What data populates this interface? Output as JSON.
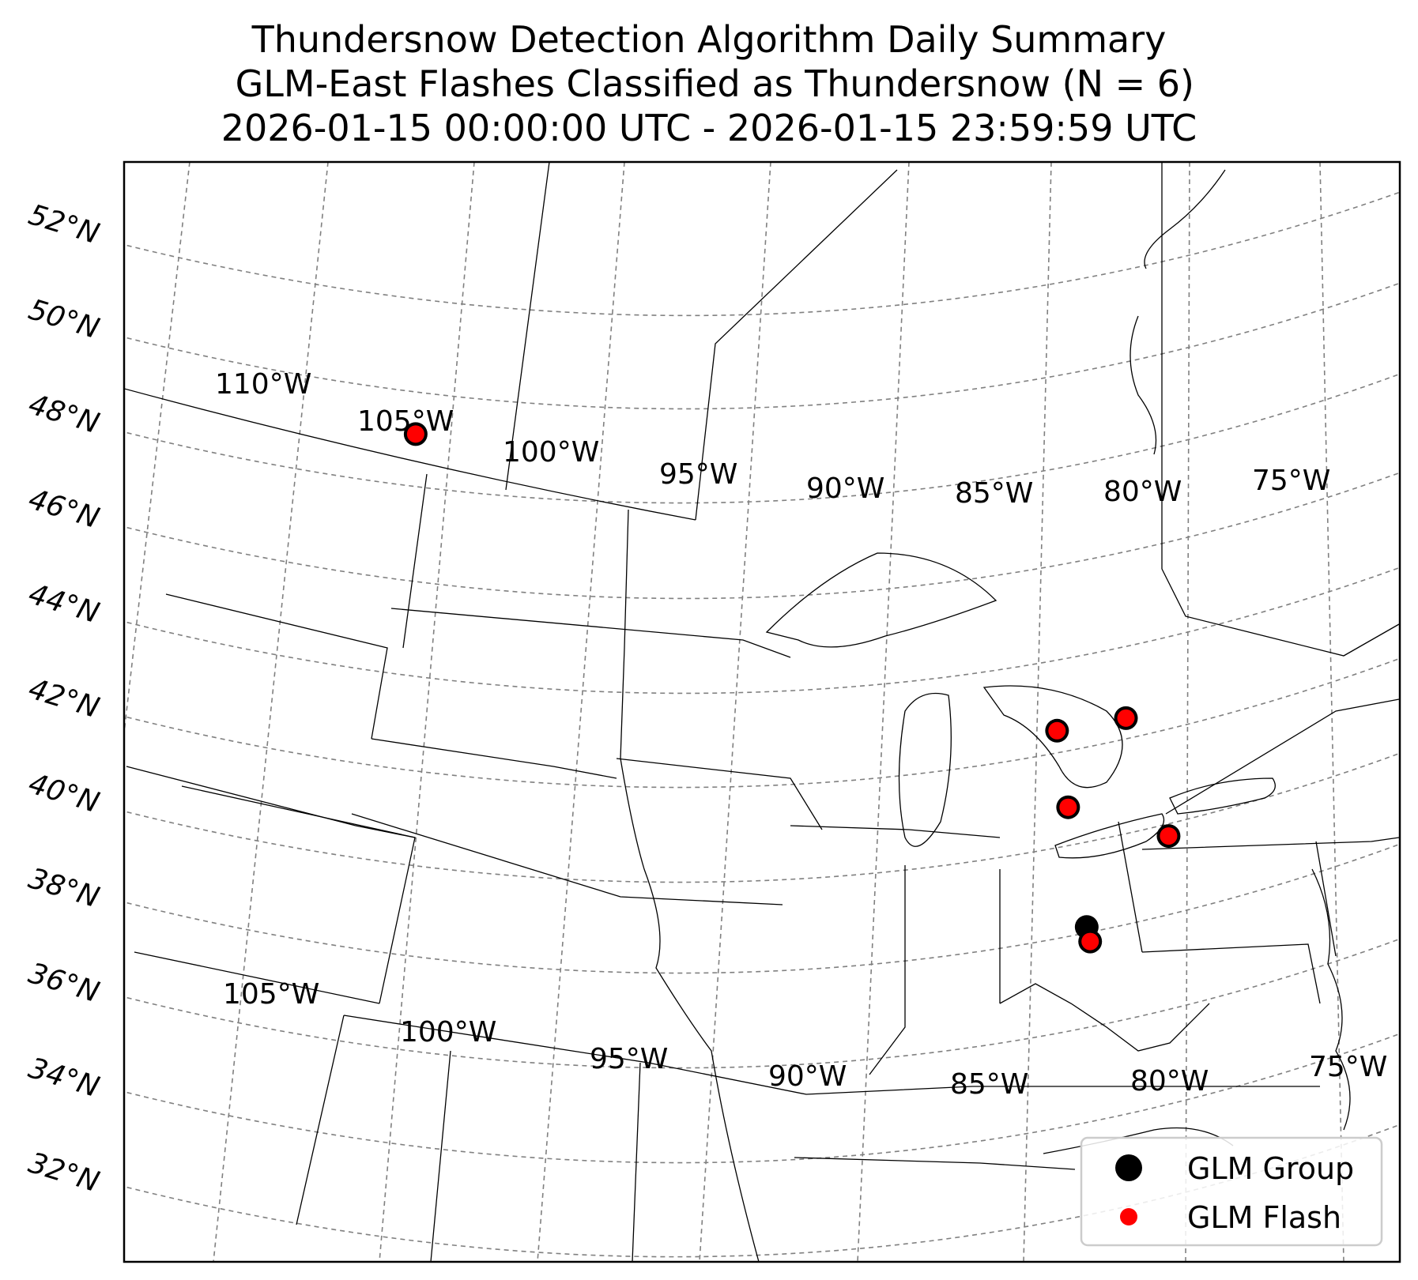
{
  "title": {
    "line1": "Thundersnow Detection Algorithm Daily Summary",
    "line2": " GLM-East Flashes Classified as Thundersnow (N = 6)",
    "line3": "2026-01-15 00:00:00 UTC - 2026-01-15 23:59:59 UTC"
  },
  "lat_labels": [
    "52°N",
    "50°N",
    "48°N",
    "46°N",
    "44°N",
    "42°N",
    "40°N",
    "38°N",
    "36°N",
    "34°N",
    "32°N"
  ],
  "lon_labels_top": [
    "110°W",
    "105°W",
    "100°W",
    "95°W",
    "90°W",
    "85°W",
    "80°W",
    "75°W"
  ],
  "lon_labels_bottom": [
    "105°W",
    "100°W",
    "95°W",
    "90°W",
    "85°W",
    "80°W",
    "75°W"
  ],
  "legend": {
    "group_label": "GLM Group",
    "flash_label": "GLM Flash"
  },
  "colors": {
    "group": "#000000",
    "flash": "#ff0000",
    "grid": "#808080"
  },
  "flashes": [
    {
      "lat": 48.9,
      "lon": -104.6
    },
    {
      "lat": 42.2,
      "lon": -81.9
    },
    {
      "lat": 42.6,
      "lon": -79.5
    },
    {
      "lat": 40.6,
      "lon": -81.6
    },
    {
      "lat": 40.2,
      "lon": -78.2
    },
    {
      "lat": 37.8,
      "lon": -81.0
    }
  ],
  "groups": [
    {
      "lat": 48.9,
      "lon": -104.6
    },
    {
      "lat": 42.2,
      "lon": -81.9
    },
    {
      "lat": 42.6,
      "lon": -79.5
    },
    {
      "lat": 40.6,
      "lon": -81.6
    },
    {
      "lat": 40.2,
      "lon": -78.2
    },
    {
      "lat": 38.1,
      "lon": -81.1
    },
    {
      "lat": 37.8,
      "lon": -81.0
    }
  ]
}
